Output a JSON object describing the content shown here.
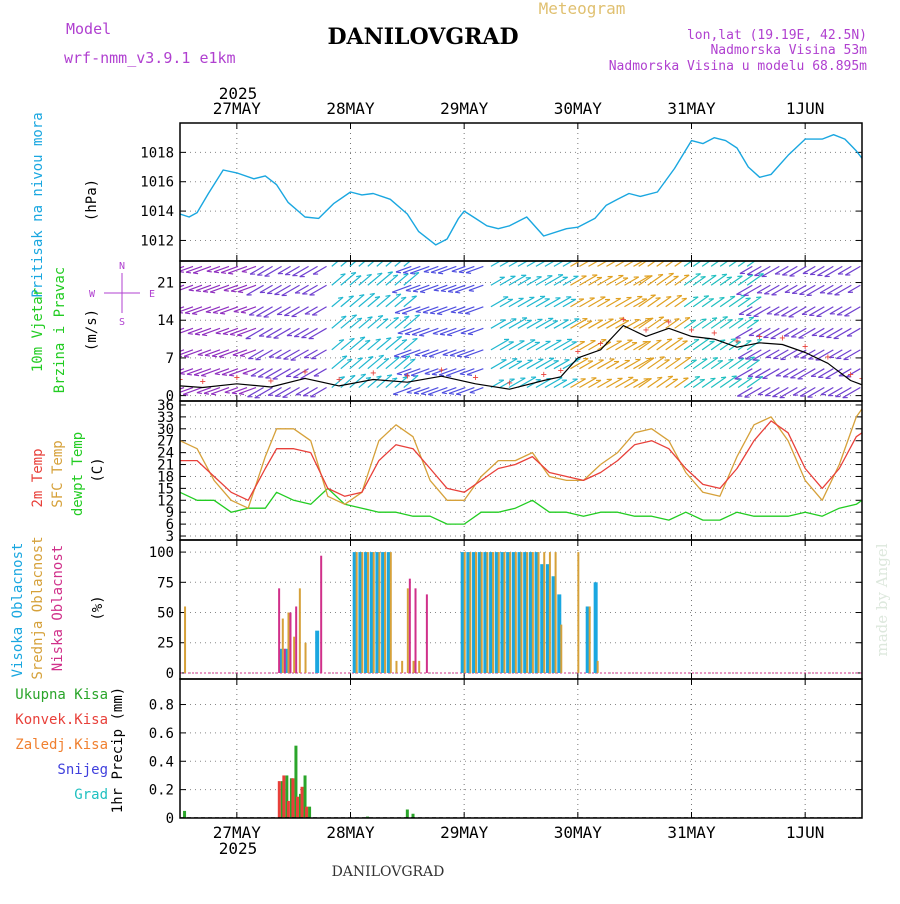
{
  "header": {
    "model_label": "Model",
    "model_name": "wrf-nmm_v3.9.1  e1km",
    "title": "DANILOVGRAD",
    "meteogram_label": "Meteogram",
    "lonlat": "lon,lat (19.19E, 42.5N)",
    "elevation": "Nadmorska Visina 53m",
    "model_elevation": "Nadmorska Visina u modelu 68.895m",
    "footer_station": "DANILOVGRAD",
    "watermark": "made by Angel"
  },
  "time_axis": {
    "year": "2025",
    "days": [
      "27MAY",
      "28MAY",
      "29MAY",
      "30MAY",
      "31MAY",
      "1JUN"
    ],
    "range_days": [
      -0.5,
      5.5
    ]
  },
  "colors": {
    "pressure": "#1aa7e0",
    "temp2m": "#e8403a",
    "sfc_temp": "#d6a13a",
    "dewpt": "#22cc22",
    "high_cloud": "#1aa7e0",
    "mid_cloud": "#d6a13a",
    "low_cloud": "#d0308a",
    "total_precip": "#2aa52a",
    "conv_precip": "#e8403a",
    "frozen_precip": "#f08030",
    "snow": "#4040dd",
    "hail": "#20c0c0",
    "wind_axis_label": "#22cc22",
    "compass": "#b040d0"
  },
  "chart_data": [
    {
      "type": "line",
      "name": "pressure",
      "ylabel_main": "Pritisak na nivou mora",
      "ylabel_unit": "(hPa)",
      "ylim": [
        1010.6,
        1020.0
      ],
      "yticks": [
        1012,
        1014,
        1016,
        1018
      ],
      "x": [
        -0.5,
        -0.42,
        -0.35,
        -0.25,
        -0.12,
        0.0,
        0.15,
        0.25,
        0.35,
        0.45,
        0.6,
        0.72,
        0.85,
        1.0,
        1.1,
        1.2,
        1.35,
        1.5,
        1.6,
        1.75,
        1.85,
        1.95,
        2.0,
        2.1,
        2.2,
        2.3,
        2.4,
        2.55,
        2.7,
        2.9,
        3.0,
        3.15,
        3.25,
        3.35,
        3.45,
        3.55,
        3.7,
        3.85,
        4.0,
        4.1,
        4.2,
        4.3,
        4.4,
        4.5,
        4.6,
        4.7,
        4.85,
        5.0,
        5.15,
        5.25,
        5.35,
        5.45,
        5.5
      ],
      "values": [
        1013.8,
        1013.6,
        1013.9,
        1015.2,
        1016.8,
        1016.6,
        1016.2,
        1016.4,
        1015.8,
        1014.6,
        1013.6,
        1013.5,
        1014.5,
        1015.3,
        1015.1,
        1015.2,
        1014.8,
        1013.8,
        1012.6,
        1011.7,
        1012.1,
        1013.5,
        1014.0,
        1013.5,
        1013.0,
        1012.8,
        1013.0,
        1013.6,
        1012.3,
        1012.8,
        1012.9,
        1013.5,
        1014.4,
        1014.8,
        1015.2,
        1015.0,
        1015.3,
        1016.9,
        1018.8,
        1018.6,
        1019.0,
        1018.8,
        1018.3,
        1017.0,
        1016.3,
        1016.5,
        1017.8,
        1018.9,
        1018.9,
        1019.2,
        1018.9,
        1018.1,
        1017.6
      ]
    },
    {
      "type": "line",
      "name": "wind",
      "ylabel_main": "10m Vjetar",
      "ylabel_main2": "Brzina i Pravac",
      "ylabel_unit": "(m/s)",
      "compass_labels": [
        "N",
        "S",
        "W",
        "E"
      ],
      "ylim": [
        -1,
        25
      ],
      "yticks": [
        0,
        7,
        14,
        21
      ],
      "x": [
        -0.5,
        -0.3,
        0.0,
        0.3,
        0.6,
        0.9,
        1.2,
        1.5,
        1.8,
        2.1,
        2.4,
        2.7,
        2.85,
        3.0,
        3.2,
        3.4,
        3.6,
        3.8,
        4.0,
        4.2,
        4.4,
        4.6,
        4.8,
        5.0,
        5.2,
        5.4,
        5.5
      ],
      "values": [
        1.8,
        1.5,
        2.2,
        1.6,
        3.2,
        1.8,
        3.0,
        2.5,
        3.6,
        2.2,
        1.2,
        2.8,
        3.5,
        7.0,
        8.5,
        13.0,
        11.0,
        12.5,
        11.0,
        10.5,
        9.0,
        9.8,
        9.5,
        8.0,
        6.0,
        2.8,
        2.0
      ],
      "barbs": [
        {
          "x0": -0.5,
          "x1": 0.2,
          "color": "#9030c0",
          "angle": 200
        },
        {
          "x0": 0.2,
          "x1": 0.8,
          "color": "#7040d0",
          "angle": 210
        },
        {
          "x0": 0.8,
          "x1": 1.5,
          "color": "#20b8d0",
          "angle": 40
        },
        {
          "x0": 1.5,
          "x1": 2.2,
          "color": "#5050e0",
          "angle": 200
        },
        {
          "x0": 2.2,
          "x1": 2.9,
          "color": "#20b8d0",
          "angle": 30
        },
        {
          "x0": 2.9,
          "x1": 3.5,
          "color": "#e0a020",
          "angle": 30
        },
        {
          "x0": 3.5,
          "x1": 3.9,
          "color": "#e0a020",
          "angle": 35
        },
        {
          "x0": 3.9,
          "x1": 4.5,
          "color": "#20c0c0",
          "angle": 35
        },
        {
          "x0": 4.5,
          "x1": 5.5,
          "color": "#7040d0",
          "angle": 210
        }
      ]
    },
    {
      "type": "line",
      "name": "temperature",
      "ylabel_2m": "2m Temp",
      "ylabel_sfc": "SFC Temp",
      "ylabel_dew": "dewpt Temp",
      "ylabel_unit": "(C)",
      "ylim": [
        2,
        37
      ],
      "yticks": [
        3,
        6,
        9,
        12,
        15,
        18,
        21,
        24,
        27,
        30,
        33,
        36
      ],
      "x": [
        -0.5,
        -0.35,
        -0.2,
        -0.05,
        0.1,
        0.25,
        0.35,
        0.5,
        0.65,
        0.8,
        0.95,
        1.1,
        1.25,
        1.4,
        1.55,
        1.7,
        1.85,
        2.0,
        2.15,
        2.3,
        2.45,
        2.6,
        2.75,
        2.9,
        3.05,
        3.2,
        3.35,
        3.5,
        3.65,
        3.8,
        3.95,
        4.1,
        4.25,
        4.4,
        4.55,
        4.7,
        4.85,
        5.0,
        5.15,
        5.3,
        5.45,
        5.5
      ],
      "series": [
        {
          "name": "2m Temp",
          "values": [
            22,
            22,
            18,
            14,
            12,
            20,
            25,
            25,
            24,
            15,
            13,
            14,
            22,
            26,
            25,
            20,
            15,
            14,
            17,
            20,
            21,
            23,
            19,
            18,
            17,
            19,
            22,
            26,
            27,
            25,
            20,
            16,
            15,
            20,
            27,
            32,
            29,
            20,
            15,
            20,
            28,
            29
          ]
        },
        {
          "name": "SFC Temp",
          "values": [
            27,
            25,
            17,
            12,
            10,
            23,
            30,
            30,
            27,
            13,
            11,
            14,
            27,
            31,
            28,
            17,
            12,
            12,
            18,
            22,
            22,
            24,
            18,
            17,
            17,
            21,
            24,
            29,
            30,
            27,
            19,
            14,
            13,
            23,
            31,
            33,
            27,
            17,
            12,
            21,
            33,
            35
          ]
        },
        {
          "name": "dewpt Temp",
          "values": [
            14,
            12,
            12,
            9,
            10,
            10,
            14,
            12,
            11,
            15,
            11,
            10,
            9,
            9,
            8,
            8,
            6,
            6,
            9,
            9,
            10,
            12,
            9,
            9,
            8,
            9,
            9,
            8,
            8,
            7,
            9,
            7,
            7,
            9,
            8,
            8,
            8,
            9,
            8,
            10,
            11,
            12
          ]
        }
      ]
    },
    {
      "type": "bar",
      "name": "cloud_cover",
      "ylabel_high": "Visoka Oblacnost",
      "ylabel_mid": "Srednja Oblacnost",
      "ylabel_low": "Niska Oblacnost",
      "ylabel_unit": "(%)",
      "ylim": [
        -5,
        110
      ],
      "yticks": [
        0,
        25,
        50,
        75,
        100
      ],
      "x": [
        -0.46,
        0.15,
        0.35,
        0.4,
        0.45,
        0.5,
        0.55,
        0.6,
        0.65,
        0.72,
        1.05,
        1.1,
        1.15,
        1.2,
        1.25,
        1.3,
        1.35,
        1.4,
        1.45,
        1.5,
        1.55,
        1.6,
        1.65,
        1.72,
        2.0,
        2.05,
        2.1,
        2.15,
        2.2,
        2.25,
        2.3,
        2.35,
        2.4,
        2.45,
        2.5,
        2.55,
        2.6,
        2.65,
        2.7,
        2.75,
        2.8,
        2.85,
        3.0,
        3.1,
        3.17
      ],
      "series": [
        {
          "name": "Visoka Oblacnost",
          "values": [
            0,
            0,
            0,
            20,
            20,
            0,
            0,
            0,
            0,
            35,
            100,
            100,
            100,
            100,
            100,
            100,
            100,
            0,
            0,
            0,
            0,
            0,
            0,
            0,
            100,
            100,
            100,
            100,
            100,
            100,
            100,
            100,
            100,
            100,
            100,
            100,
            100,
            100,
            90,
            90,
            80,
            65,
            0,
            55,
            75
          ]
        },
        {
          "name": "Srednja Oblacnost",
          "values": [
            55,
            0,
            0,
            45,
            50,
            30,
            70,
            25,
            0,
            0,
            100,
            100,
            100,
            100,
            100,
            100,
            100,
            10,
            10,
            70,
            10,
            10,
            0,
            0,
            100,
            100,
            100,
            100,
            100,
            100,
            100,
            100,
            100,
            100,
            100,
            100,
            100,
            100,
            100,
            100,
            100,
            40,
            100,
            55,
            10
          ]
        },
        {
          "name": "Niska Oblacnost",
          "values": [
            0,
            0,
            70,
            20,
            50,
            55,
            0,
            0,
            0,
            97,
            0,
            0,
            0,
            0,
            0,
            0,
            0,
            0,
            0,
            78,
            70,
            0,
            65,
            0,
            0,
            0,
            0,
            0,
            0,
            0,
            0,
            0,
            0,
            0,
            0,
            0,
            0,
            0,
            0,
            0,
            0,
            0,
            0,
            0,
            0
          ]
        }
      ]
    },
    {
      "type": "bar",
      "name": "precipitation",
      "ylabel_total": "Ukupna Kisa",
      "ylabel_conv": "Konvek.Kisa",
      "ylabel_frozen": "Zaledj.Kisa",
      "ylabel_snow": "Snijeg",
      "ylabel_hail": "Grad",
      "ylabel_unit": "1hr Precip (mm)",
      "ylim": [
        0,
        0.98
      ],
      "yticks": [
        0,
        0.2,
        0.4,
        0.6,
        0.8
      ],
      "x": [
        -0.46,
        0.4,
        0.44,
        0.48,
        0.52,
        0.56,
        0.6,
        0.64,
        1.15,
        1.5,
        1.55
      ],
      "series": [
        {
          "name": "Ukupna Kisa",
          "values": [
            0.05,
            0.26,
            0.3,
            0.28,
            0.51,
            0.17,
            0.3,
            0.08,
            0.01,
            0.06,
            0.03
          ]
        },
        {
          "name": "Konvek.Kisa",
          "values": [
            0.0,
            0.26,
            0.3,
            0.12,
            0.28,
            0.15,
            0.22,
            0.08,
            0.0,
            0.0,
            0.0
          ]
        }
      ]
    }
  ]
}
